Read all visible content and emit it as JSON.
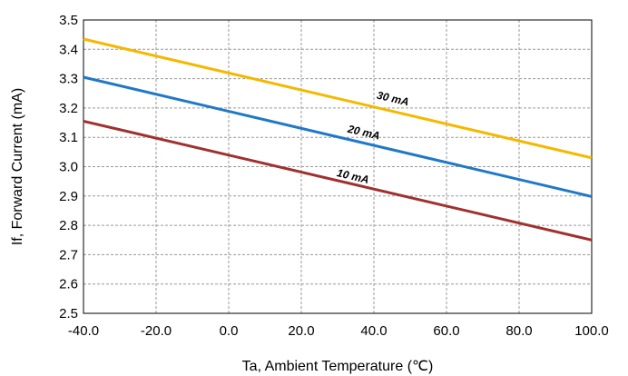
{
  "chart_data": {
    "type": "line",
    "xlabel": "Ta, Ambient Temperature (℃)",
    "ylabel": "If, Forward Current (mA)",
    "xlim": [
      -40,
      100
    ],
    "ylim": [
      2.5,
      3.5
    ],
    "x_ticks": [
      "-40.0",
      "-20.0",
      "0.0",
      "20.0",
      "40.0",
      "60.0",
      "80.0",
      "100.0"
    ],
    "y_ticks": [
      "2.5",
      "2.6",
      "2.7",
      "2.8",
      "2.9",
      "3.0",
      "3.1",
      "3.2",
      "3.3",
      "3.4",
      "3.5"
    ],
    "grid": true,
    "series": [
      {
        "name": "30 mA",
        "color": "#f5b800",
        "x": [
          -40,
          100
        ],
        "y": [
          3.435,
          3.03
        ],
        "label_at": [
          45,
          3.22
        ]
      },
      {
        "name": "20 mA",
        "color": "#1f78c8",
        "x": [
          -40,
          100
        ],
        "y": [
          3.305,
          2.898
        ],
        "label_at": [
          37,
          3.105
        ]
      },
      {
        "name": "10 mA",
        "color": "#a03030",
        "x": [
          -40,
          100
        ],
        "y": [
          3.155,
          2.75
        ],
        "label_at": [
          34,
          2.955
        ]
      }
    ]
  }
}
